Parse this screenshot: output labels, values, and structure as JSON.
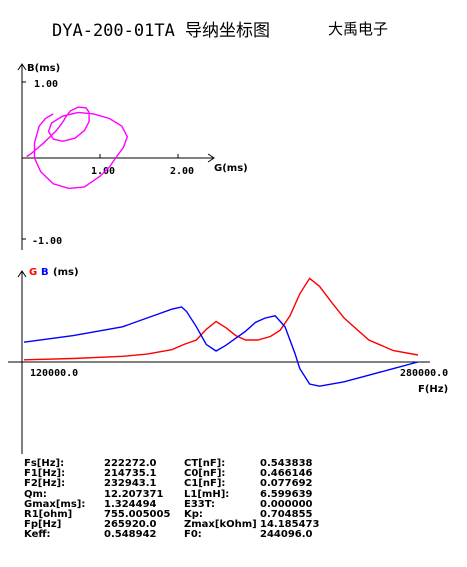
{
  "header": {
    "title": "DYA-200-01TA 导纳坐标图",
    "company": "大禹电子"
  },
  "admittance_plot": {
    "y_label": "B(ms)",
    "x_label": "G(ms)",
    "y_ticks": [
      "1.00",
      "-1.00"
    ],
    "x_ticks": [
      "1.00",
      "2.00"
    ]
  },
  "frequency_plot": {
    "legend_g": "G",
    "legend_b": "B",
    "legend_unit": "(ms)",
    "start_label": "120000.0",
    "end_label": "280000.0",
    "x_unit": "F(Hz)",
    "colors": {
      "G": "#ff0000",
      "B": "#0000ff"
    }
  },
  "colors": {
    "circle": "#ff00ff",
    "G": "#ff0000",
    "B": "#0000ff"
  },
  "chart_data": [
    {
      "type": "scatter",
      "xlabel": "G(ms)",
      "ylabel": "B(ms)",
      "xlim": [
        -0.05,
        2.35
      ],
      "ylim": [
        -1.1,
        1.2
      ],
      "series": [
        {
          "points": [
            [
              0.06,
              0.02
            ],
            [
              0.12,
              0.06
            ],
            [
              0.2,
              0.13
            ],
            [
              0.28,
              0.2
            ],
            [
              0.36,
              0.28
            ],
            [
              0.44,
              0.36
            ],
            [
              0.5,
              0.44
            ],
            [
              0.54,
              0.5
            ],
            [
              0.56,
              0.54
            ],
            [
              0.62,
              0.62
            ],
            [
              0.72,
              0.67
            ],
            [
              0.82,
              0.66
            ],
            [
              0.86,
              0.6
            ],
            [
              0.86,
              0.48
            ],
            [
              0.8,
              0.36
            ],
            [
              0.68,
              0.26
            ],
            [
              0.52,
              0.22
            ],
            [
              0.4,
              0.25
            ],
            [
              0.34,
              0.35
            ],
            [
              0.38,
              0.46
            ],
            [
              0.52,
              0.55
            ],
            [
              0.72,
              0.6
            ],
            [
              0.92,
              0.58
            ],
            [
              1.12,
              0.52
            ],
            [
              1.28,
              0.42
            ],
            [
              1.35,
              0.28
            ],
            [
              1.3,
              0.14
            ],
            [
              1.2,
              0.0
            ],
            [
              1.12,
              -0.12
            ],
            [
              1.0,
              -0.24
            ],
            [
              0.8,
              -0.38
            ],
            [
              0.6,
              -0.4
            ],
            [
              0.4,
              -0.34
            ],
            [
              0.24,
              -0.18
            ],
            [
              0.16,
              0.0
            ],
            [
              0.16,
              0.2
            ],
            [
              0.22,
              0.42
            ],
            [
              0.3,
              0.52
            ],
            [
              0.4,
              0.58
            ]
          ]
        }
      ]
    },
    {
      "type": "line",
      "xlabel": "F(Hz)",
      "ylabel": "(ms)",
      "xlim": [
        120000,
        280000
      ],
      "series": [
        {
          "name": "G",
          "x": [
            120000,
            140000,
            160000,
            170000,
            180000,
            185000,
            190000,
            194000,
            198000,
            202000,
            206000,
            210000,
            215000,
            220000,
            224000,
            228000,
            232000,
            236000,
            240000,
            245000,
            250000,
            260000,
            270000,
            280000
          ],
          "y": [
            0.05,
            0.08,
            0.13,
            0.18,
            0.28,
            0.4,
            0.5,
            0.74,
            0.92,
            0.78,
            0.6,
            0.5,
            0.5,
            0.58,
            0.72,
            1.05,
            1.55,
            1.9,
            1.72,
            1.35,
            1.0,
            0.5,
            0.26,
            0.16
          ]
        },
        {
          "name": "B",
          "x": [
            120000,
            140000,
            160000,
            170000,
            175000,
            180000,
            184000,
            186000,
            190000,
            194000,
            198000,
            202000,
            210000,
            214000,
            218000,
            222000,
            226000,
            230000,
            232000,
            236000,
            240000,
            250000,
            260000,
            270000,
            280000
          ],
          "y": [
            0.45,
            0.6,
            0.8,
            1.0,
            1.1,
            1.2,
            1.25,
            1.15,
            0.8,
            0.4,
            0.25,
            0.38,
            0.7,
            0.9,
            1.0,
            1.05,
            0.8,
            0.2,
            -0.15,
            -0.5,
            -0.55,
            -0.45,
            -0.3,
            -0.15,
            0.0
          ]
        }
      ]
    }
  ],
  "parameters": [
    [
      "Fs[Hz]:",
      "222272.0",
      "CT[nF]:",
      "0.543838"
    ],
    [
      "F1[Hz]:",
      "214735.1",
      "C0[nF]:",
      "0.466146"
    ],
    [
      "F2[Hz]:",
      "232943.1",
      "C1[nF]:",
      "0.077692"
    ],
    [
      "Qm:",
      "12.207371",
      "L1[mH]:",
      "6.599639"
    ],
    [
      "Gmax[ms]:",
      "1.324494",
      "E33T:",
      "0.000000"
    ],
    [
      "R1[ohm]",
      "755.005005",
      "Kp:",
      "0.704855"
    ],
    [
      "Fp[Hz]",
      "265920.0",
      "Zmax[kOhm]",
      "14.185473"
    ],
    [
      "Keff:",
      "0.548942",
      "F0:",
      "244096.0"
    ]
  ]
}
